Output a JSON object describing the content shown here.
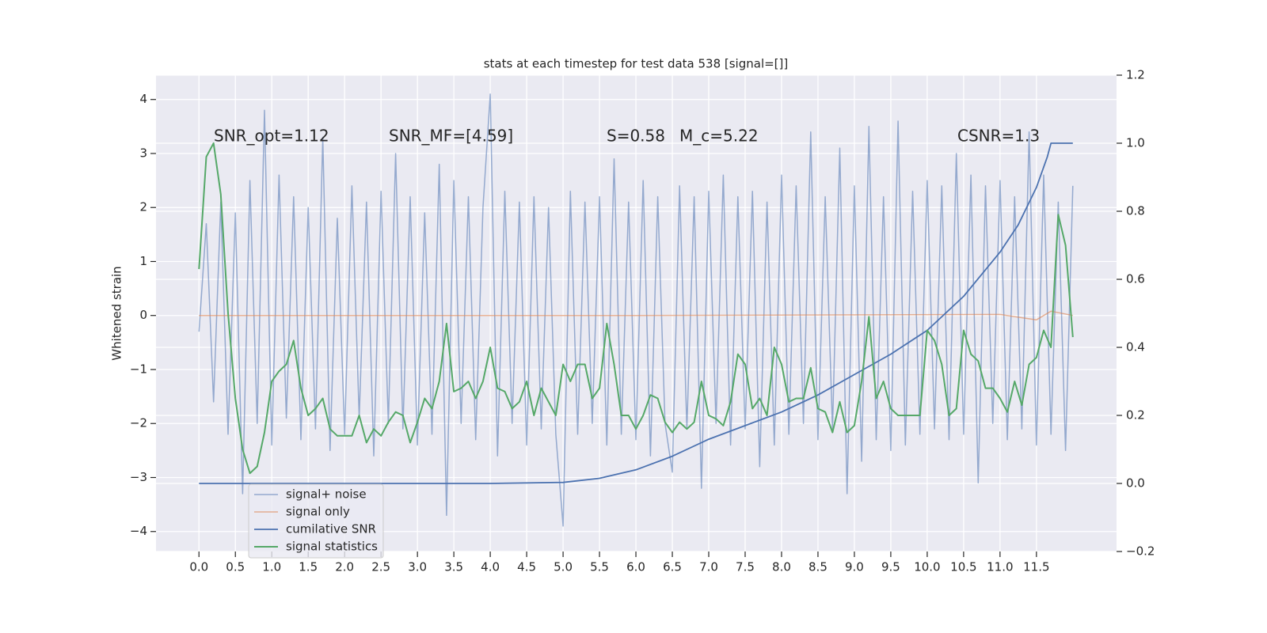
{
  "chart_data": {
    "type": "line",
    "title": "stats at each timestep for test data 538 [signal=[]]",
    "ylabel": "Whitened strain",
    "annotations": [
      "SNR_opt=1.12",
      "SNR_MF=[4.59]",
      "S=0.58",
      "M_c=5.22",
      "CSNR=1.3"
    ],
    "grid": true,
    "legend": "lower left",
    "xlim": [
      -0.59,
      12.6
    ],
    "ylim": [
      -4.37,
      4.45
    ],
    "y2lim": [
      -0.2,
      1.2
    ],
    "xticks": [
      {
        "value": 0,
        "label": "0.0"
      },
      0.5,
      {
        "value": 1,
        "label": "1.0"
      },
      1.5,
      {
        "value": 2,
        "label": "2.0"
      },
      2.5,
      {
        "value": 3,
        "label": "3.0"
      },
      3.5,
      {
        "value": 4,
        "label": "4.0"
      },
      4.5,
      {
        "value": 5,
        "label": "5.0"
      },
      5.5,
      {
        "value": 6,
        "label": "6.0"
      },
      6.5,
      {
        "value": 7,
        "label": "7.0"
      },
      7.5,
      {
        "value": 8,
        "label": "8.0"
      },
      8.5,
      {
        "value": 9,
        "label": "9.0"
      },
      9.5,
      {
        "value": 10,
        "label": "10.0"
      },
      10.5,
      {
        "value": 11,
        "label": "11.0"
      },
      11.5
    ],
    "yticks": [
      {
        "value": -4,
        "label": "−4"
      },
      {
        "value": -3,
        "label": "−3"
      },
      {
        "value": -2,
        "label": "−2"
      },
      {
        "value": -1,
        "label": "−1"
      },
      0,
      1,
      2,
      3,
      4
    ],
    "y2ticks": [
      {
        "value": -0.2,
        "label": "−0.2"
      },
      {
        "value": 0,
        "label": "0.0"
      },
      0.2,
      0.4,
      0.6,
      0.8,
      {
        "value": 1,
        "label": "1.0"
      },
      1.2
    ],
    "x": [
      0,
      0.1,
      0.2,
      0.3,
      0.4,
      0.5,
      0.6,
      0.7,
      0.8,
      0.9,
      1,
      1.1,
      1.2,
      1.3,
      1.4,
      1.5,
      1.6,
      1.7,
      1.8,
      1.9,
      2,
      2.1,
      2.2,
      2.3,
      2.4,
      2.5,
      2.6,
      2.7,
      2.8,
      2.9,
      3,
      3.1,
      3.2,
      3.3,
      3.4,
      3.5,
      3.6,
      3.7,
      3.8,
      3.9,
      4,
      4.1,
      4.2,
      4.3,
      4.4,
      4.5,
      4.6,
      4.7,
      4.8,
      4.9,
      5,
      5.1,
      5.2,
      5.3,
      5.4,
      5.5,
      5.6,
      5.7,
      5.8,
      5.9,
      6,
      6.1,
      6.2,
      6.3,
      6.4,
      6.5,
      6.6,
      6.7,
      6.8,
      6.9,
      7,
      7.1,
      7.2,
      7.3,
      7.4,
      7.5,
      7.6,
      7.7,
      7.8,
      7.9,
      8,
      8.1,
      8.2,
      8.3,
      8.4,
      8.5,
      8.6,
      8.7,
      8.8,
      8.9,
      9,
      9.1,
      9.2,
      9.3,
      9.4,
      9.5,
      9.6,
      9.7,
      9.8,
      9.9,
      10,
      10.1,
      10.2,
      10.3,
      10.4,
      10.5,
      10.6,
      10.7,
      10.8,
      10.9,
      11,
      11.1,
      11.2,
      11.3,
      11.4,
      11.5,
      11.6,
      11.7,
      11.8,
      11.9,
      12
    ],
    "series": [
      {
        "name": "signal+ noise",
        "color": "#4c72b0",
        "values": [
          -0.3,
          1.7,
          -1.6,
          2.1,
          -2.2,
          1.9,
          -3.3,
          2.5,
          -2.0,
          3.8,
          -2.4,
          2.6,
          -1.9,
          2.2,
          -2.3,
          2.0,
          -2.1,
          3.3,
          -2.5,
          1.8,
          -2.2,
          2.4,
          -1.9,
          2.1,
          -2.6,
          2.3,
          -2.0,
          3.0,
          -2.1,
          2.2,
          -2.4,
          1.9,
          -2.2,
          2.8,
          -3.7,
          2.5,
          -2.0,
          2.2,
          -2.3,
          2.0,
          4.1,
          -2.6,
          2.3,
          -2.0,
          2.1,
          -2.4,
          2.2,
          -2.1,
          2.0,
          -2.2,
          -3.9,
          2.3,
          -2.2,
          2.1,
          -2.0,
          2.2,
          -2.4,
          2.9,
          -2.2,
          2.1,
          -2.3,
          2.5,
          -2.6,
          2.2,
          -2.0,
          -2.9,
          2.4,
          -2.1,
          2.2,
          -3.2,
          2.3,
          -2.0,
          2.6,
          -2.4,
          2.2,
          -2.1,
          2.3,
          -2.8,
          2.1,
          -2.4,
          2.6,
          -2.2,
          2.4,
          -2.0,
          3.4,
          -2.3,
          2.2,
          -2.1,
          3.1,
          -3.3,
          2.4,
          -2.7,
          3.5,
          -2.3,
          2.2,
          -2.5,
          3.6,
          -2.4,
          2.3,
          -2.2,
          2.5,
          -2.1,
          2.4,
          -2.3,
          3.0,
          -2.2,
          2.6,
          -3.1,
          2.4,
          -2.0,
          2.5,
          -2.3,
          2.2,
          -2.1,
          3.4,
          -2.4,
          2.6,
          -2.2,
          2.1,
          -2.5,
          2.4
        ]
      },
      {
        "name": "signal only",
        "color": "#dd8452",
        "x": [
          0,
          6,
          11,
          11.5,
          11.7,
          12
        ],
        "values": [
          0,
          0,
          0.02,
          -0.08,
          0.08,
          0
        ]
      },
      {
        "name": "cumilative SNR",
        "color": "#4c72b0",
        "axis": "y2",
        "x": [
          0,
          1,
          2,
          3,
          4,
          5,
          5.5,
          6,
          6.5,
          7,
          7.5,
          8,
          8.5,
          9,
          9.5,
          10,
          10.5,
          11,
          11.25,
          11.5,
          11.65,
          11.7,
          12
        ],
        "values": [
          0,
          0,
          0,
          0,
          0,
          0.003,
          0.015,
          0.04,
          0.08,
          0.13,
          0.17,
          0.21,
          0.26,
          0.32,
          0.38,
          0.45,
          0.55,
          0.68,
          0.76,
          0.87,
          0.96,
          1.0,
          1.0
        ]
      },
      {
        "name": "signal statistics",
        "color": "#55a868",
        "axis": "y2",
        "values": [
          0.63,
          0.96,
          1.0,
          0.85,
          0.5,
          0.25,
          0.1,
          0.03,
          0.05,
          0.15,
          0.3,
          0.33,
          0.35,
          0.42,
          0.28,
          0.2,
          0.22,
          0.25,
          0.16,
          0.14,
          0.14,
          0.14,
          0.2,
          0.12,
          0.16,
          0.14,
          0.18,
          0.21,
          0.2,
          0.12,
          0.18,
          0.25,
          0.22,
          0.3,
          0.47,
          0.27,
          0.28,
          0.3,
          0.25,
          0.3,
          0.4,
          0.28,
          0.27,
          0.22,
          0.24,
          0.3,
          0.2,
          0.28,
          0.24,
          0.2,
          0.35,
          0.3,
          0.35,
          0.35,
          0.25,
          0.28,
          0.47,
          0.35,
          0.2,
          0.2,
          0.16,
          0.2,
          0.26,
          0.25,
          0.18,
          0.15,
          0.18,
          0.16,
          0.18,
          0.3,
          0.2,
          0.19,
          0.17,
          0.24,
          0.38,
          0.35,
          0.22,
          0.25,
          0.2,
          0.4,
          0.35,
          0.24,
          0.25,
          0.25,
          0.34,
          0.22,
          0.21,
          0.15,
          0.24,
          0.15,
          0.17,
          0.3,
          0.49,
          0.25,
          0.3,
          0.22,
          0.2,
          0.2,
          0.2,
          0.2,
          0.45,
          0.42,
          0.35,
          0.2,
          0.22,
          0.45,
          0.38,
          0.36,
          0.28,
          0.28,
          0.25,
          0.21,
          0.3,
          0.23,
          0.35,
          0.37,
          0.45,
          0.4,
          0.79,
          0.7,
          0.43
        ]
      }
    ]
  }
}
